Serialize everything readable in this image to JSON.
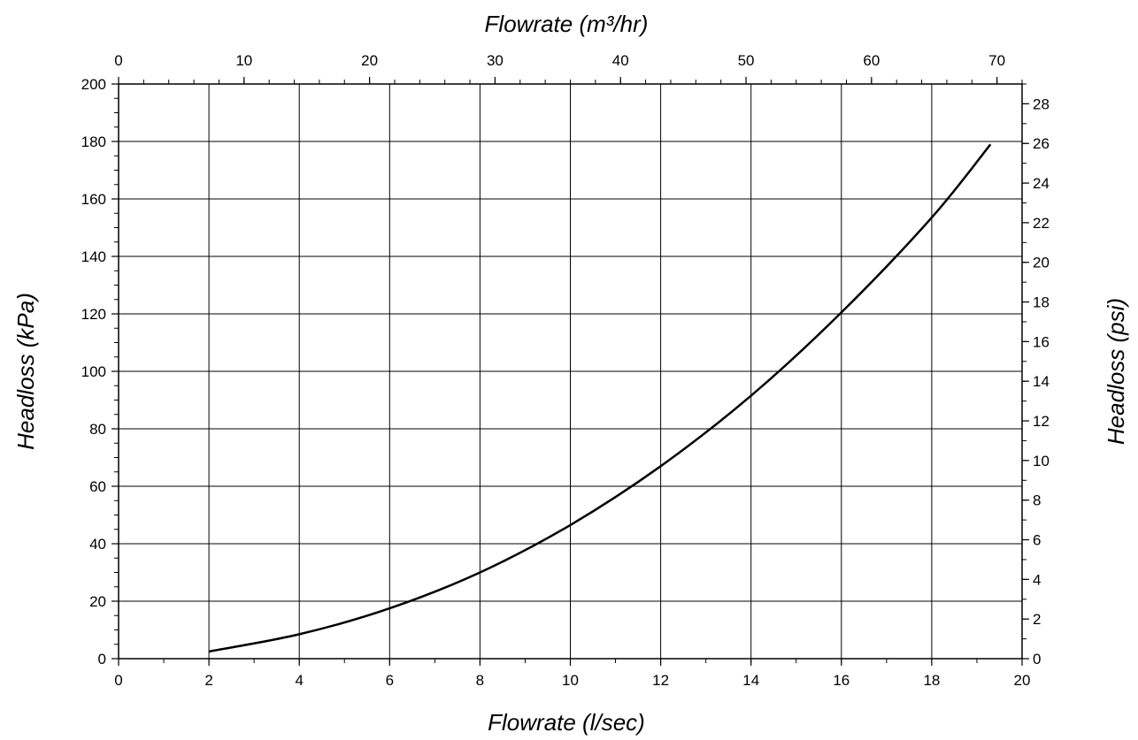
{
  "chart_data": {
    "type": "line",
    "title": "",
    "xlabel": "Flowrate (l/sec)",
    "ylabel": "Headloss (kPa)",
    "x2label": "Flowrate (m³/hr)",
    "y2label": "Headloss (psi)",
    "xlim": [
      0,
      20
    ],
    "ylim": [
      0,
      200
    ],
    "x2lim": [
      0,
      72
    ],
    "y2lim": [
      0,
      29
    ],
    "xticks": [
      "0",
      "2",
      "4",
      "6",
      "8",
      "10",
      "12",
      "14",
      "16",
      "18",
      "20"
    ],
    "yticks": [
      "0",
      "20",
      "40",
      "60",
      "80",
      "100",
      "120",
      "140",
      "160",
      "180",
      "200"
    ],
    "x2ticks": [
      "0",
      "10",
      "20",
      "30",
      "40",
      "50",
      "60",
      "70"
    ],
    "y2ticks": [
      "0",
      "2",
      "4",
      "6",
      "8",
      "10",
      "12",
      "14",
      "16",
      "18",
      "20",
      "22",
      "24",
      "26",
      "28"
    ],
    "grid": true,
    "series": [
      {
        "x": [
          2,
          4,
          6,
          8,
          10,
          12,
          14,
          16,
          18,
          19.3
        ],
        "values": [
          2.5,
          8.5,
          17.5,
          30,
          46.5,
          67,
          91.5,
          120.5,
          153.5,
          179
        ]
      }
    ],
    "line_color": "#000000"
  }
}
